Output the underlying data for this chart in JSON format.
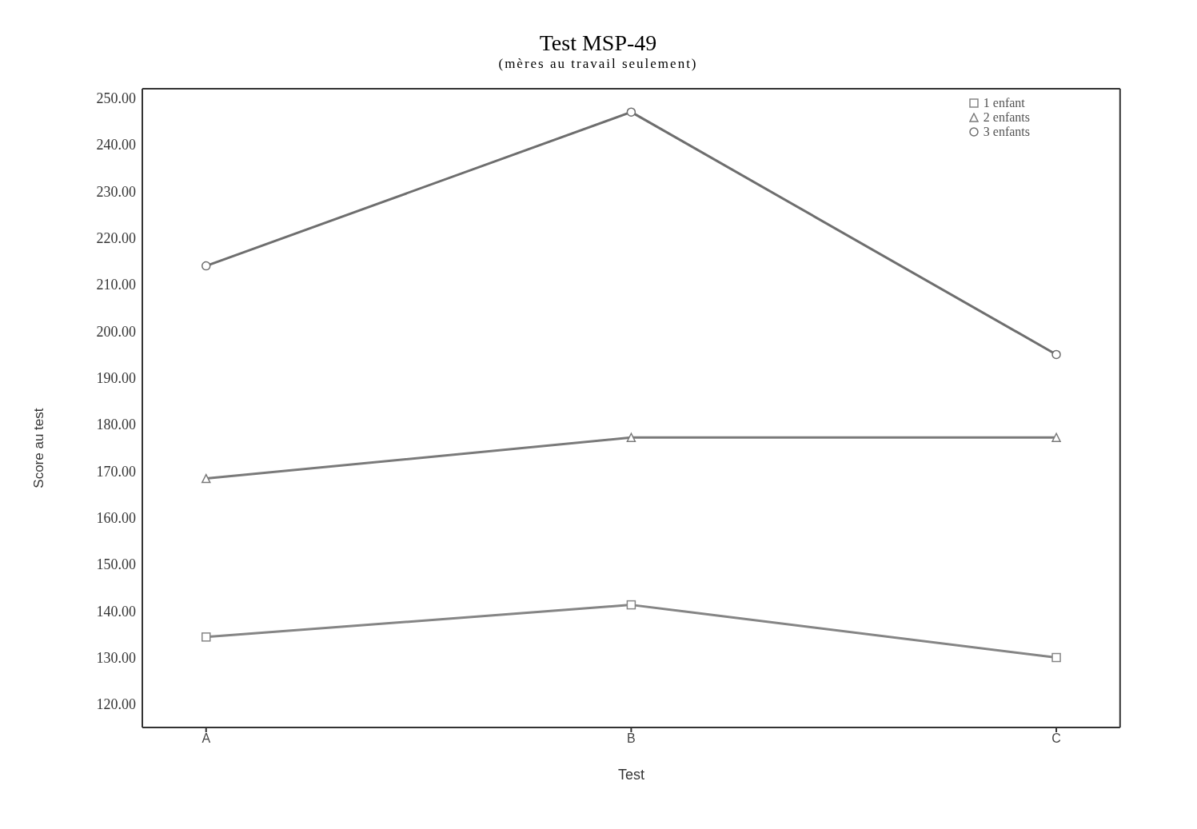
{
  "chart_data": {
    "type": "line",
    "title": "Test MSP-49",
    "subtitle": "(mères au travail seulement)",
    "xlabel": "Test",
    "ylabel": "Score au test",
    "categories": [
      "A",
      "B",
      "C"
    ],
    "series": [
      {
        "name": "1 enfant",
        "color": "#858585",
        "marker": "square",
        "values": [
          134.4,
          141.3,
          130
        ]
      },
      {
        "name": "2 enfants",
        "color": "#7a7a7a",
        "marker": "triangle",
        "values": [
          168.4,
          177.2,
          177.2
        ]
      },
      {
        "name": "3 enfants",
        "color": "#6e6e6e",
        "marker": "circle",
        "values": [
          214,
          247,
          195
        ]
      }
    ],
    "ylim": [
      115,
      252
    ],
    "yticks": [
      {
        "value": 120,
        "label": "120.00"
      },
      {
        "value": 130,
        "label": "130.00"
      },
      {
        "value": 140,
        "label": "140.00"
      },
      {
        "value": 150,
        "label": "150.00"
      },
      {
        "value": 160,
        "label": "160.00"
      },
      {
        "value": 170,
        "label": "170.00"
      },
      {
        "value": 180,
        "label": "180.00"
      },
      {
        "value": 190,
        "label": "190.00"
      },
      {
        "value": 200,
        "label": "200.00"
      },
      {
        "value": 210,
        "label": "210.00"
      },
      {
        "value": 220,
        "label": "220.00"
      },
      {
        "value": 230,
        "label": "230.00"
      },
      {
        "value": 240,
        "label": "240.00"
      },
      {
        "value": 250,
        "label": "250.00"
      }
    ],
    "grid": false,
    "legend": "top right"
  }
}
